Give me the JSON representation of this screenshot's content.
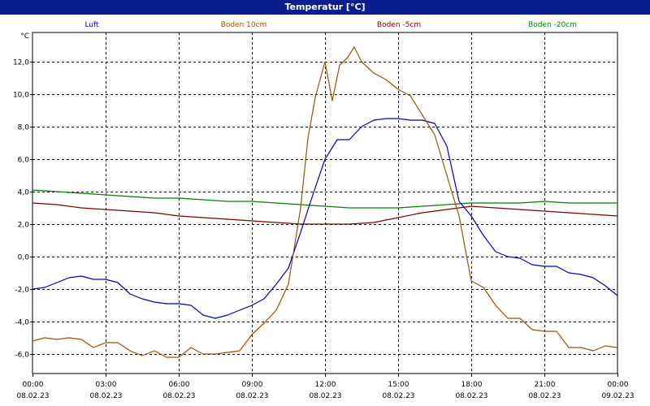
{
  "window": {
    "title": "Temperatur [°C]"
  },
  "chart_data": {
    "type": "line",
    "title": "Temperatur [°C]",
    "ylabel": "°C",
    "xlabel": "",
    "ylim": [
      -7.2,
      13.8
    ],
    "yticks": [
      12.0,
      10.0,
      8.0,
      6.0,
      4.0,
      2.0,
      0.0,
      -2.0,
      -4.0,
      -6.0
    ],
    "ytick_labels": [
      "12,0",
      "10,0",
      "8,0",
      "6,0",
      "4,0",
      "2,0",
      "0,0",
      "-2,0",
      "-4,0",
      "-6,0"
    ],
    "xlim": [
      0,
      24
    ],
    "xticks": [
      0,
      3,
      6,
      9,
      12,
      15,
      18,
      21,
      24
    ],
    "xtick_labels": [
      [
        "00:00",
        "08.02.23"
      ],
      [
        "03:00",
        "08.02.23"
      ],
      [
        "06:00",
        "08.02.23"
      ],
      [
        "09:00",
        "08.02.23"
      ],
      [
        "12:00",
        "08.02.23"
      ],
      [
        "15:00",
        "08.02.23"
      ],
      [
        "18:00",
        "08.02.23"
      ],
      [
        "21:00",
        "08.02.23"
      ],
      [
        "00:00",
        "09.02.23"
      ]
    ],
    "grid": true,
    "legend_position": "top",
    "series": [
      {
        "name": "Luft",
        "color": "#0000cc",
        "x": [
          0,
          0.5,
          1,
          1.5,
          2,
          2.5,
          3,
          3.5,
          4,
          4.5,
          5,
          5.5,
          6,
          6.5,
          7,
          7.5,
          8,
          8.5,
          9,
          9.5,
          10,
          10.5,
          11,
          11.5,
          12,
          12.5,
          13,
          13.5,
          14,
          14.5,
          15,
          15.5,
          16,
          16.5,
          17,
          17.5,
          18,
          18.5,
          19,
          19.5,
          20,
          20.5,
          21,
          21.5,
          22,
          22.5,
          23,
          23.5,
          24
        ],
        "y": [
          -2.0,
          -1.9,
          -1.6,
          -1.3,
          -1.2,
          -1.4,
          -1.4,
          -1.6,
          -2.3,
          -2.6,
          -2.8,
          -2.9,
          -2.9,
          -3.0,
          -3.6,
          -3.8,
          -3.6,
          -3.3,
          -3.0,
          -2.6,
          -1.7,
          -0.7,
          1.5,
          3.8,
          6.0,
          7.2,
          7.2,
          8.0,
          8.4,
          8.5,
          8.5,
          8.4,
          8.4,
          8.2,
          6.8,
          3.4,
          2.5,
          1.3,
          0.3,
          0.0,
          -0.1,
          -0.5,
          -0.6,
          -0.6,
          -1.0,
          -1.1,
          -1.3,
          -1.8,
          -2.4
        ]
      },
      {
        "name": "Boden 10cm",
        "color": "#a05000",
        "x": [
          0,
          0.5,
          1,
          1.5,
          2,
          2.5,
          3,
          3.5,
          4,
          4.5,
          5,
          5.5,
          6,
          6.5,
          7,
          7.5,
          8,
          8.5,
          9,
          9.5,
          10,
          10.5,
          11,
          11.3,
          11.6,
          12,
          12.3,
          12.6,
          12.9,
          13.2,
          13.5,
          14,
          14.5,
          15,
          15.5,
          16,
          16.5,
          17,
          17.5,
          18,
          18.5,
          19,
          19.5,
          20,
          20.5,
          21,
          21.5,
          22,
          22.5,
          23,
          23.5,
          24
        ],
        "y": [
          -5.2,
          -5.0,
          -5.1,
          -5.0,
          -5.1,
          -5.6,
          -5.3,
          -5.3,
          -5.8,
          -6.1,
          -5.8,
          -6.2,
          -6.2,
          -5.6,
          -6.0,
          -6.0,
          -5.9,
          -5.8,
          -4.8,
          -4.1,
          -3.3,
          -1.7,
          3.0,
          7.3,
          9.8,
          12.0,
          9.6,
          11.8,
          12.2,
          12.9,
          12.0,
          11.3,
          10.9,
          10.3,
          9.9,
          8.7,
          7.5,
          5.0,
          2.5,
          -1.5,
          -1.9,
          -3.0,
          -3.8,
          -3.8,
          -4.5,
          -4.6,
          -4.6,
          -5.6,
          -5.6,
          -5.8,
          -5.5,
          -5.6
        ]
      },
      {
        "name": "Boden -5cm",
        "color": "#800000",
        "x": [
          0,
          1,
          2,
          3,
          4,
          5,
          6,
          7,
          8,
          9,
          10,
          11,
          12,
          13,
          14,
          15,
          16,
          17,
          18,
          19,
          20,
          21,
          22,
          23,
          24
        ],
        "y": [
          3.3,
          3.2,
          3.0,
          2.9,
          2.8,
          2.7,
          2.5,
          2.4,
          2.3,
          2.2,
          2.1,
          2.0,
          2.0,
          2.0,
          2.1,
          2.4,
          2.7,
          2.9,
          3.1,
          3.0,
          2.9,
          2.8,
          2.7,
          2.6,
          2.5
        ]
      },
      {
        "name": "Boden -20cm",
        "color": "#008000",
        "x": [
          0,
          1,
          2,
          3,
          4,
          5,
          6,
          7,
          8,
          9,
          10,
          11,
          12,
          13,
          14,
          15,
          16,
          17,
          18,
          19,
          20,
          21,
          22,
          23,
          24
        ],
        "y": [
          4.1,
          4.0,
          3.9,
          3.8,
          3.7,
          3.6,
          3.6,
          3.5,
          3.4,
          3.4,
          3.3,
          3.2,
          3.1,
          3.0,
          3.0,
          3.0,
          3.1,
          3.2,
          3.3,
          3.3,
          3.3,
          3.4,
          3.3,
          3.3,
          3.3
        ]
      }
    ]
  }
}
